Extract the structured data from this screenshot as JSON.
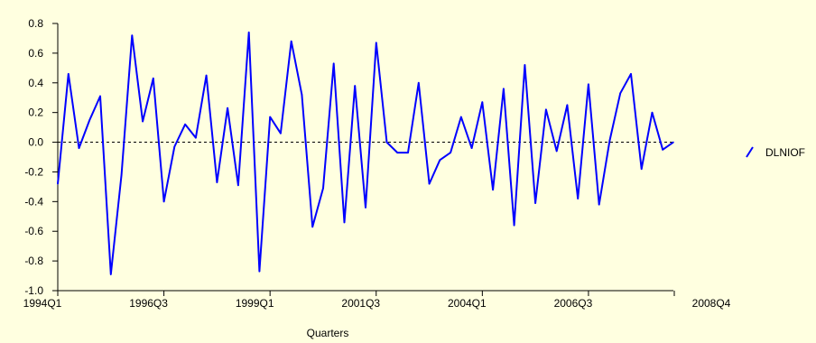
{
  "chart_data": {
    "type": "line",
    "title": "",
    "xlabel": "Quarters",
    "ylabel": "",
    "x_ticks": [
      "1994Q1",
      "1996Q3",
      "1999Q1",
      "2001Q3",
      "2004Q1",
      "2006Q3",
      "2008Q4"
    ],
    "ylim": [
      -1.0,
      0.8
    ],
    "y_ticks": [
      "0.8",
      "0.6",
      "0.4",
      "0.2",
      "0.0",
      "-0.2",
      "-0.4",
      "-0.6",
      "-0.8",
      "-1.0"
    ],
    "y_tick_values": [
      0.8,
      0.6,
      0.4,
      0.2,
      0.0,
      -0.2,
      -0.4,
      -0.6,
      -0.8,
      -1.0
    ],
    "reference_line": 0.0,
    "grid": false,
    "legend_position": "right",
    "background_color": "#FFFFE0",
    "series": [
      {
        "name": "DLNIOF",
        "color": "#0000FF",
        "values": [
          -0.28,
          0.46,
          -0.04,
          0.15,
          0.31,
          -0.89,
          -0.22,
          0.72,
          0.14,
          0.43,
          -0.4,
          -0.03,
          0.12,
          0.03,
          0.45,
          -0.27,
          0.23,
          -0.29,
          0.74,
          -0.87,
          0.17,
          0.06,
          0.68,
          0.32,
          -0.57,
          -0.31,
          0.53,
          -0.54,
          0.38,
          -0.44,
          0.67,
          0.0,
          -0.07,
          -0.07,
          0.4,
          -0.28,
          -0.12,
          -0.07,
          0.17,
          -0.04,
          0.27,
          -0.32,
          0.36,
          -0.56,
          0.52,
          -0.41,
          0.22,
          -0.06,
          0.25,
          -0.38,
          0.39,
          -0.42,
          0.01,
          0.33,
          0.46,
          -0.18,
          0.2,
          -0.05,
          0.0
        ]
      }
    ]
  }
}
